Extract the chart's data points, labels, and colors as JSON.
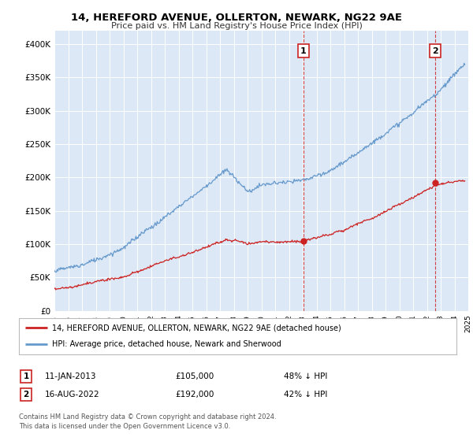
{
  "title": "14, HEREFORD AVENUE, OLLERTON, NEWARK, NG22 9AE",
  "subtitle": "Price paid vs. HM Land Registry's House Price Index (HPI)",
  "bg_color": "#ffffff",
  "plot_bg_color": "#dce8f5",
  "grid_color": "#ffffff",
  "hpi_color": "#6699cc",
  "price_color": "#cc2222",
  "ylim": [
    0,
    420000
  ],
  "yticks": [
    0,
    50000,
    100000,
    150000,
    200000,
    250000,
    300000,
    350000,
    400000
  ],
  "ytick_labels": [
    "£0",
    "£50K",
    "£100K",
    "£150K",
    "£200K",
    "£250K",
    "£300K",
    "£350K",
    "£400K"
  ],
  "sale1_date": 2013.04,
  "sale1_price": 105000,
  "sale1_label": "1",
  "sale2_date": 2022.62,
  "sale2_price": 192000,
  "sale2_label": "2",
  "legend_line1": "14, HEREFORD AVENUE, OLLERTON, NEWARK, NG22 9AE (detached house)",
  "legend_line2": "HPI: Average price, detached house, Newark and Sherwood",
  "table_row1": [
    "1",
    "11-JAN-2013",
    "£105,000",
    "48% ↓ HPI"
  ],
  "table_row2": [
    "2",
    "16-AUG-2022",
    "£192,000",
    "42% ↓ HPI"
  ],
  "footer": "Contains HM Land Registry data © Crown copyright and database right 2024.\nThis data is licensed under the Open Government Licence v3.0.",
  "xstart": 1995,
  "xend": 2025
}
